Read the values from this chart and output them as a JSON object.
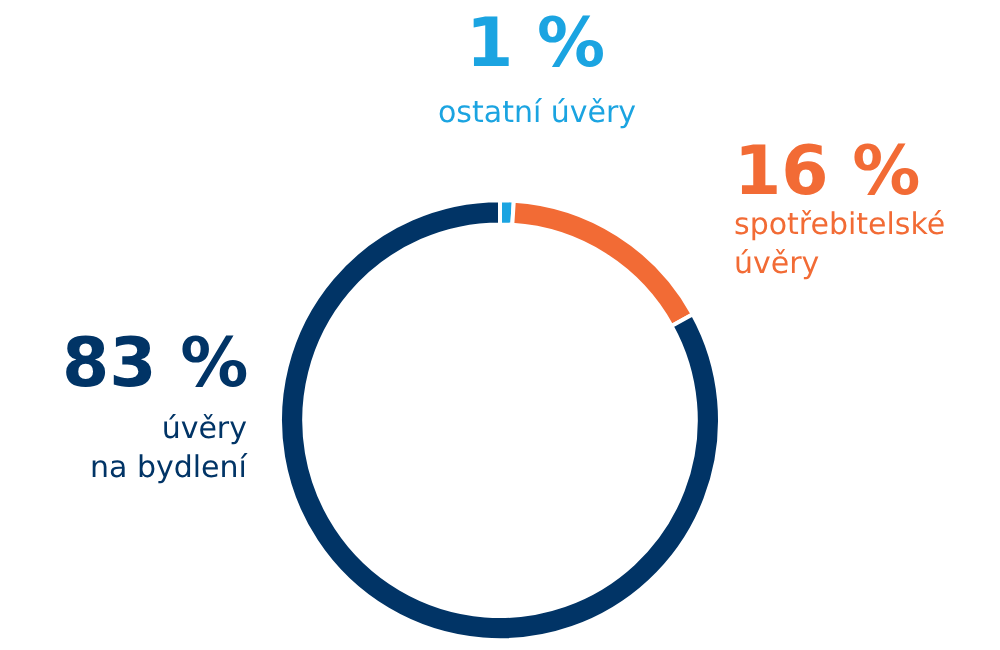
{
  "chart_data": {
    "type": "donut",
    "categories": [
      "ostatní úvěry",
      "spotřebitelské úvěry",
      "úvěry na bydlení"
    ],
    "values": [
      1,
      16,
      83
    ],
    "value_labels": [
      "1 %",
      "16 %",
      "83 %"
    ],
    "colors": [
      "#1ba4e1",
      "#f26b35",
      "#013466"
    ],
    "legend": false
  }
}
